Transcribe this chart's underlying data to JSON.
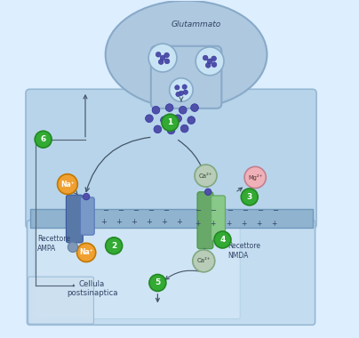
{
  "neuron_body_color": "#aec8e0",
  "neuron_edge_color": "#88aac8",
  "synapse_cleft_color": "#c0d8ee",
  "membrane_color": "#90b8d8",
  "postsynaptic_color": "#c8e0f0",
  "postsynaptic_inner": "#d8ecf8",
  "bg_color": "#ddeeff",
  "ampa_left_color": "#5878a8",
  "ampa_right_color": "#7898c8",
  "nmda_left_color": "#68a868",
  "nmda_right_color": "#88c888",
  "glu_dot_color": "#5050a8",
  "glu_dot_edge": "#3030a0",
  "vesicle_color": "#c8e4f4",
  "vesicle_edge": "#88aac8",
  "na_color": "#f0a030",
  "na_edge": "#c07800",
  "ca_color": "#b8ccb8",
  "ca_edge": "#80a880",
  "mg_color": "#f0b0b8",
  "mg_edge": "#c08090",
  "small_ball_color": "#8098b8",
  "step_fill": "#33aa33",
  "step_edge": "#228822",
  "arrow_color": "#445566",
  "sign_color": "#334466",
  "label_color": "#334466",
  "labels": {
    "glutammato": "Glutammato",
    "recettore_ampa": "Recettore\nAMPA",
    "recettore_nmda": "Recettore\nNMDA",
    "cellula": "Cellula\npostsinaptica",
    "na_plus": "Na⁺",
    "ca2plus": "Ca²⁺",
    "mg2plus": "Mg²⁺"
  }
}
